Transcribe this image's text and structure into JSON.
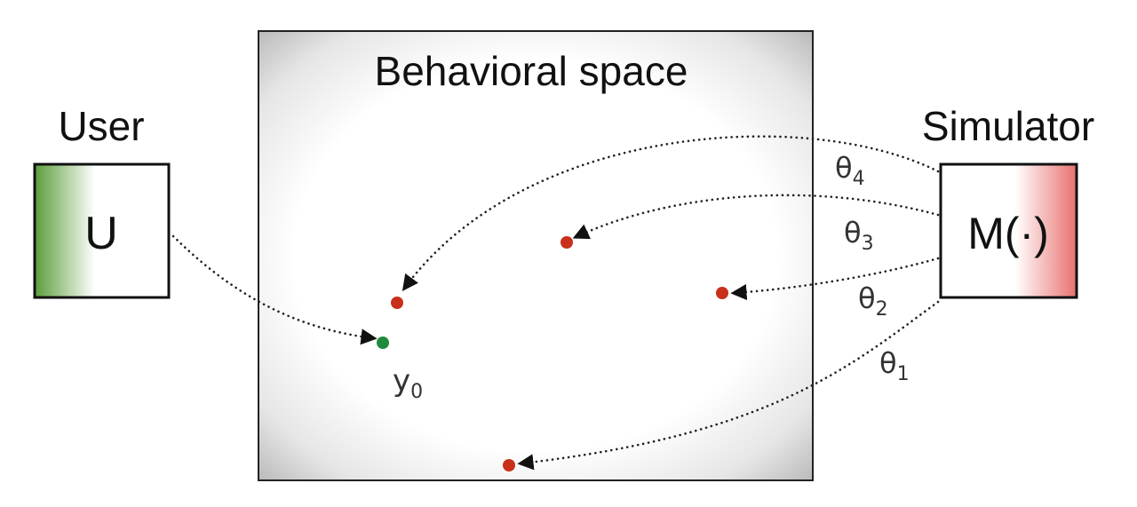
{
  "behavioral_space": {
    "title": "Behavioral space"
  },
  "user": {
    "heading": "User",
    "box_label": "U",
    "gradient_color": "#5a9e3a"
  },
  "simulator": {
    "heading": "Simulator",
    "box_label": "M(·)",
    "gradient_color": "#e8716f"
  },
  "observed_point": {
    "label": "y",
    "subscript": "0",
    "color": "#1e8a3c"
  },
  "simulated_points": {
    "color": "#c8301a"
  },
  "parameters": [
    {
      "symbol": "θ",
      "subscript": "4"
    },
    {
      "symbol": "θ",
      "subscript": "3"
    },
    {
      "symbol": "θ",
      "subscript": "2"
    },
    {
      "symbol": "θ",
      "subscript": "1"
    }
  ]
}
